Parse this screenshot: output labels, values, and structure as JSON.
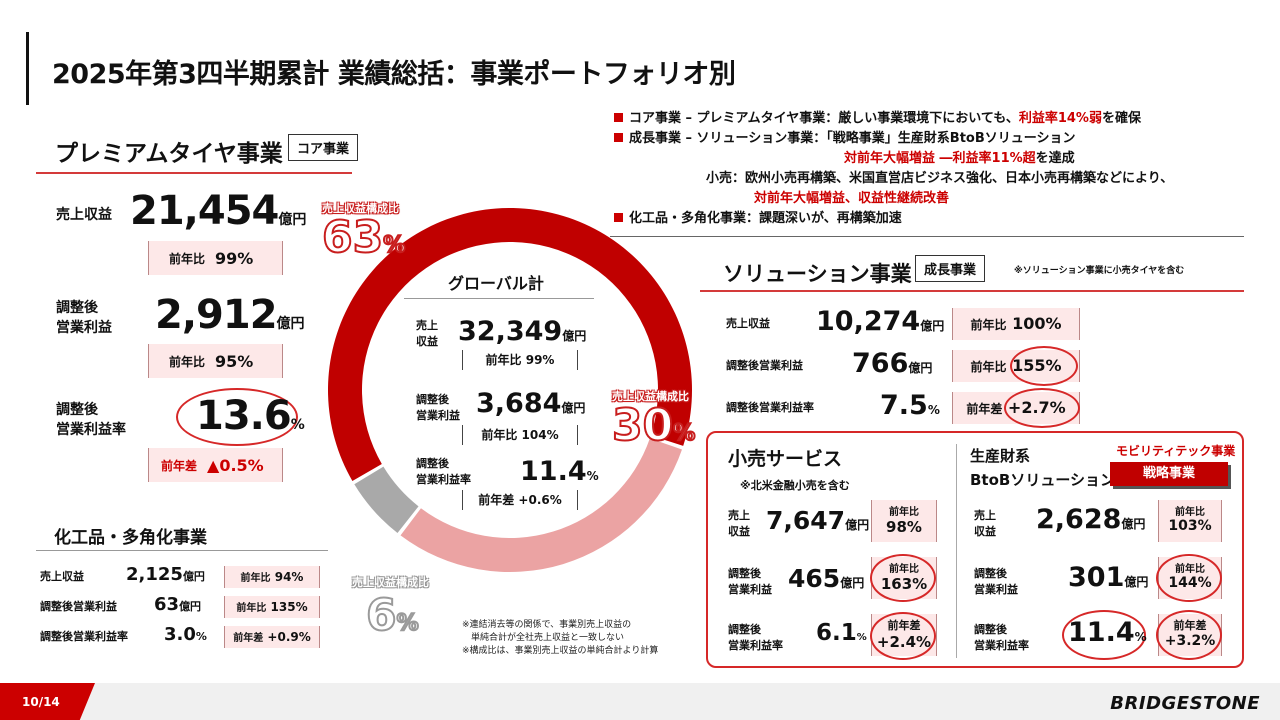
{
  "title": "2025年第3四半期累計 業績総括：事業ポートフォリオ別",
  "premium": {
    "heading": "プレミアムタイヤ事業",
    "tag": "コア事業",
    "revenue_label": "売上収益",
    "revenue_value": "21,454",
    "unit_oku": "億円",
    "revenue_cmp_key": "前年比",
    "revenue_cmp_val": "99%",
    "op_label_1": "調整後",
    "op_label_2": "営業利益",
    "op_value": "2,912",
    "op_cmp_key": "前年比",
    "op_cmp_val": "95%",
    "margin_label_1": "調整後",
    "margin_label_2": "営業利益率",
    "margin_value": "13.6",
    "pct": "%",
    "margin_cmp_key": "前年差",
    "margin_cmp_val": "▲0.5%"
  },
  "chemical": {
    "heading": "化工品・多角化事業",
    "rows": [
      {
        "label": "売上収益",
        "value": "2,125",
        "unit": "億円",
        "key": "前年比",
        "val": "94%"
      },
      {
        "label": "調整後営業利益",
        "value": "63",
        "unit": "億円",
        "key": "前年比",
        "val": "135%"
      },
      {
        "label": "調整後営業利益率",
        "value": "3.0",
        "unit": "%",
        "key": "前年差",
        "val": "+0.9%"
      }
    ]
  },
  "donut": {
    "caption_premium": "売上収益構成比",
    "pct_premium": "63",
    "caption_solution": "売上収益構成比",
    "pct_solution": "30",
    "caption_chem": "売上収益構成比",
    "pct_chem": "6",
    "pct_sign": "%",
    "shares": [
      63,
      30,
      6
    ],
    "colors": [
      "#c00000",
      "#eba3a3",
      "#a9a9a9"
    ]
  },
  "global": {
    "heading": "グローバル計",
    "rev_label_1": "売上",
    "rev_label_2": "収益",
    "rev_value": "32,349",
    "rev_unit": "億円",
    "rev_cmp": "前年比 99%",
    "op_label_1": "調整後",
    "op_label_2": "営業利益",
    "op_value": "3,684",
    "op_unit": "億円",
    "op_cmp": "前年比 104%",
    "mg_label_1": "調整後",
    "mg_label_2": "営業利益率",
    "mg_value": "11.4",
    "mg_unit": "%",
    "mg_cmp": "前年差 +0.6%"
  },
  "bullets": {
    "b1_a": "コア事業 – プレミアムタイヤ事業：厳しい事業環境下においても、",
    "b1_red": "利益率14%弱",
    "b1_b": "を確保",
    "b2": "成長事業 – ソリューション事業：「戦略事業」生産財系BtoBソリューション",
    "b2_red": "対前年大幅増益 ―利益率11%超",
    "b2_end": "を達成",
    "b3": "小売：欧州小売再構築、米国直営店ビジネス強化、日本小売再構築などにより、",
    "b3_red": "対前年大幅増益、収益性継続改善",
    "b4": "化工品・多角化事業：課題深いが、再構築加速"
  },
  "solution": {
    "heading": "ソリューション事業",
    "tag": "成長事業",
    "note": "※ソリューション事業に小売タイヤを含む",
    "rows": [
      {
        "label": "売上収益",
        "value": "10,274",
        "unit": "億円",
        "key": "前年比",
        "val": "100%"
      },
      {
        "label": "調整後営業利益",
        "value": "766",
        "unit": "億円",
        "key": "前年比",
        "val": "155%"
      },
      {
        "label": "調整後営業利益率",
        "value": "7.5",
        "unit": "%",
        "key": "前年差",
        "val": "+2.7%"
      }
    ]
  },
  "retail": {
    "heading": "小売サービス",
    "note": "※北米金融小売を含む",
    "rev_l1": "売上",
    "rev_l2": "収益",
    "rev_v": "7,647",
    "rev_u": "億円",
    "rev_k": "前年比",
    "rev_c": "98%",
    "op_l1": "調整後",
    "op_l2": "営業利益",
    "op_v": "465",
    "op_u": "億円",
    "op_k": "前年比",
    "op_c": "163%",
    "mg_l1": "調整後",
    "mg_l2": "営業利益率",
    "mg_v": "6.1",
    "mg_u": "%",
    "mg_k": "前年差",
    "mg_c": "+2.4%"
  },
  "btob": {
    "heading_1": "生産財系",
    "heading_2": "BtoBソリューション",
    "mobility": "モビリティテック事業",
    "strategic": "戦略事業",
    "rev_l1": "売上",
    "rev_l2": "収益",
    "rev_v": "2,628",
    "rev_u": "億円",
    "rev_k": "前年比",
    "rev_c": "103%",
    "op_l1": "調整後",
    "op_l2": "営業利益",
    "op_v": "301",
    "op_u": "億円",
    "op_k": "前年比",
    "op_c": "144%",
    "mg_l1": "調整後",
    "mg_l2": "営業利益率",
    "mg_v": "11.4",
    "mg_u": "%",
    "mg_k": "前年差",
    "mg_c": "+3.2%"
  },
  "footnotes": [
    "※連結消去等の関係で、事業別売上収益の",
    "　単純合計が全社売上収益と一致しない",
    "※構成比は、事業別売上収益の単純合計より計算"
  ],
  "footer": {
    "page": "10/14",
    "logo": "BRIDGESTONE"
  }
}
